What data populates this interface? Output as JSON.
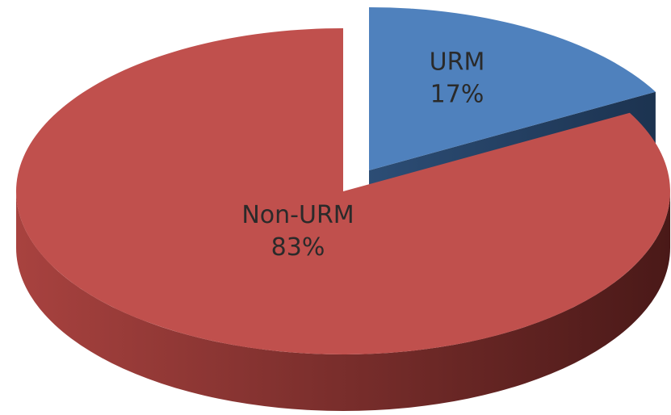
{
  "chart_data": {
    "type": "pie",
    "categories": [
      "URM",
      "Non-URM"
    ],
    "values": [
      17,
      83
    ],
    "value_labels": [
      "17%",
      "83%"
    ],
    "colors": [
      "#4f81bd",
      "#c0504d"
    ]
  }
}
